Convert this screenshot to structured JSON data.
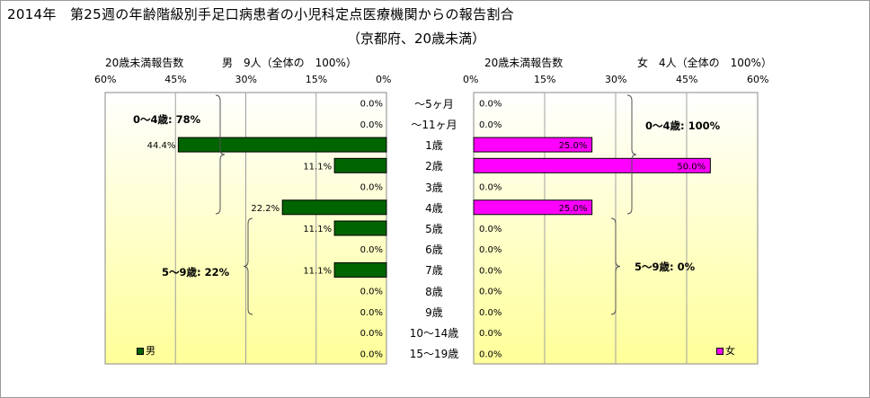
{
  "header": {
    "title": "2014年　第25週の年齢階級別手足口病患者の小児科定点医療機関からの報告割合",
    "subtitle": "（京都府、20歳未満）"
  },
  "left_panel": {
    "caption": "20歳未満報告数",
    "summary": "男　9人（全体の　100%）",
    "legend": "男"
  },
  "right_panel": {
    "caption": "20歳未満報告数",
    "summary": "女　4人（全体の　100%）",
    "legend": "女"
  },
  "groups": {
    "male_0_4": "0～4歳: 78%",
    "male_5_9": "5～9歳: 22%",
    "female_0_4": "0～4歳: 100%",
    "female_5_9": "5～9歳: 0%"
  },
  "colors": {
    "male_bar": "#006400",
    "female_bar": "#FF00FF",
    "plot_bg_top": "#FFFFFF",
    "plot_bg_bottom": "#FFFF99"
  },
  "chart_data": [
    {
      "type": "bar",
      "orientation": "horizontal",
      "direction": "right-to-left",
      "categories": [
        "～5ヶ月",
        "～11ヶ月",
        "1歳",
        "2歳",
        "3歳",
        "4歳",
        "5歳",
        "6歳",
        "7歳",
        "8歳",
        "9歳",
        "10～14歳",
        "15～19歳"
      ],
      "series": [
        {
          "name": "男",
          "values": [
            0.0,
            0.0,
            44.4,
            11.1,
            0.0,
            22.2,
            11.1,
            0.0,
            11.1,
            0.0,
            0.0,
            0.0,
            0.0
          ]
        }
      ],
      "data_labels": [
        "0.0%",
        "0.0%",
        "44.4%",
        "11.1%",
        "0.0%",
        "22.2%",
        "11.1%",
        "0.0%",
        "11.1%",
        "0.0%",
        "0.0%",
        "0.0%",
        "0.0%"
      ],
      "xlim": [
        0,
        60
      ],
      "x_ticks": [
        "60%",
        "45%",
        "30%",
        "15%",
        "0%"
      ],
      "legend_position": "bottom-left",
      "grid": true
    },
    {
      "type": "bar",
      "orientation": "horizontal",
      "direction": "left-to-right",
      "categories": [
        "～5ヶ月",
        "～11ヶ月",
        "1歳",
        "2歳",
        "3歳",
        "4歳",
        "5歳",
        "6歳",
        "7歳",
        "8歳",
        "9歳",
        "10～14歳",
        "15～19歳"
      ],
      "series": [
        {
          "name": "女",
          "values": [
            0.0,
            0.0,
            25.0,
            50.0,
            0.0,
            25.0,
            0.0,
            0.0,
            0.0,
            0.0,
            0.0,
            0.0,
            0.0
          ]
        }
      ],
      "data_labels": [
        "0.0%",
        "0.0%",
        "25.0%",
        "50.0%",
        "0.0%",
        "25.0%",
        "0.0%",
        "0.0%",
        "0.0%",
        "0.0%",
        "0.0%",
        "0.0%",
        "0.0%"
      ],
      "xlim": [
        0,
        60
      ],
      "x_ticks": [
        "0%",
        "15%",
        "30%",
        "45%",
        "60%"
      ],
      "legend_position": "bottom-right",
      "grid": true
    }
  ]
}
